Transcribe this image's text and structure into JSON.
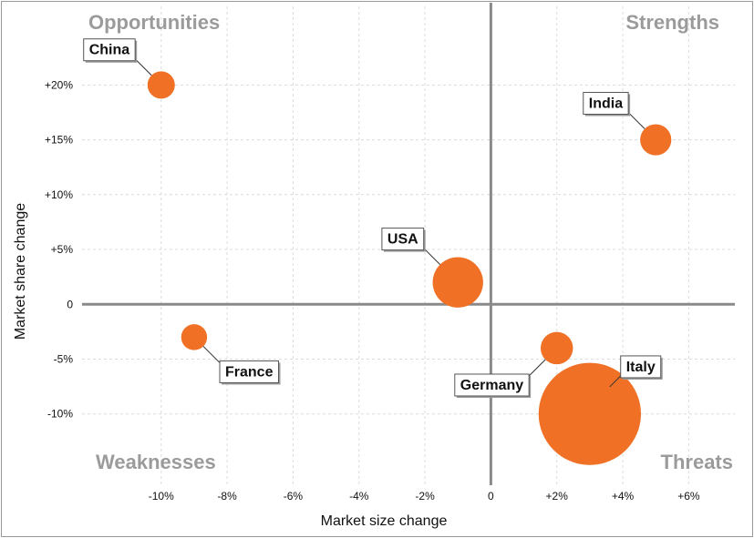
{
  "chart_data": {
    "type": "scatter",
    "title": "",
    "xlabel": "Market size change",
    "ylabel": "Market share change",
    "xlim": [
      -12.4,
      7.4
    ],
    "ylim": [
      -16.5,
      27.5
    ],
    "x_ticks": [
      {
        "v": -10,
        "label": "-10%"
      },
      {
        "v": -8,
        "label": "-8%"
      },
      {
        "v": -6,
        "label": "-6%"
      },
      {
        "v": -4,
        "label": "-4%"
      },
      {
        "v": -2,
        "label": "-2%"
      },
      {
        "v": 0,
        "label": "0"
      },
      {
        "v": 2,
        "label": "+2%"
      },
      {
        "v": 4,
        "label": "+4%"
      },
      {
        "v": 6,
        "label": "+6%"
      }
    ],
    "y_ticks": [
      {
        "v": 20,
        "label": "+20%"
      },
      {
        "v": 15,
        "label": "+15%"
      },
      {
        "v": 10,
        "label": "+10%"
      },
      {
        "v": 5,
        "label": "+5%"
      },
      {
        "v": 0,
        "label": "0"
      },
      {
        "v": -5,
        "label": "-5%"
      },
      {
        "v": -10,
        "label": "-10%"
      }
    ],
    "grid": true,
    "point_color": "#f07025",
    "quadrants": {
      "top_left": "Opportunities",
      "top_right": "Strengths",
      "bottom_left": "Weaknesses",
      "bottom_right": "Threats"
    },
    "points": [
      {
        "label": "China",
        "x": -10,
        "y": 20,
        "size": 1.0,
        "label_side": "upper-left"
      },
      {
        "label": "India",
        "x": 5,
        "y": 15,
        "size": 1.3,
        "label_side": "upper-left"
      },
      {
        "label": "USA",
        "x": -1,
        "y": 2,
        "size": 3.4,
        "label_side": "upper-left"
      },
      {
        "label": "France",
        "x": -9,
        "y": -3,
        "size": 0.9,
        "label_side": "lower-right"
      },
      {
        "label": "Germany",
        "x": 2,
        "y": -4,
        "size": 1.4,
        "label_side": "lower-left"
      },
      {
        "label": "Italy",
        "x": 3,
        "y": -10,
        "size": 14.0,
        "label_side": "upper-right"
      }
    ]
  }
}
